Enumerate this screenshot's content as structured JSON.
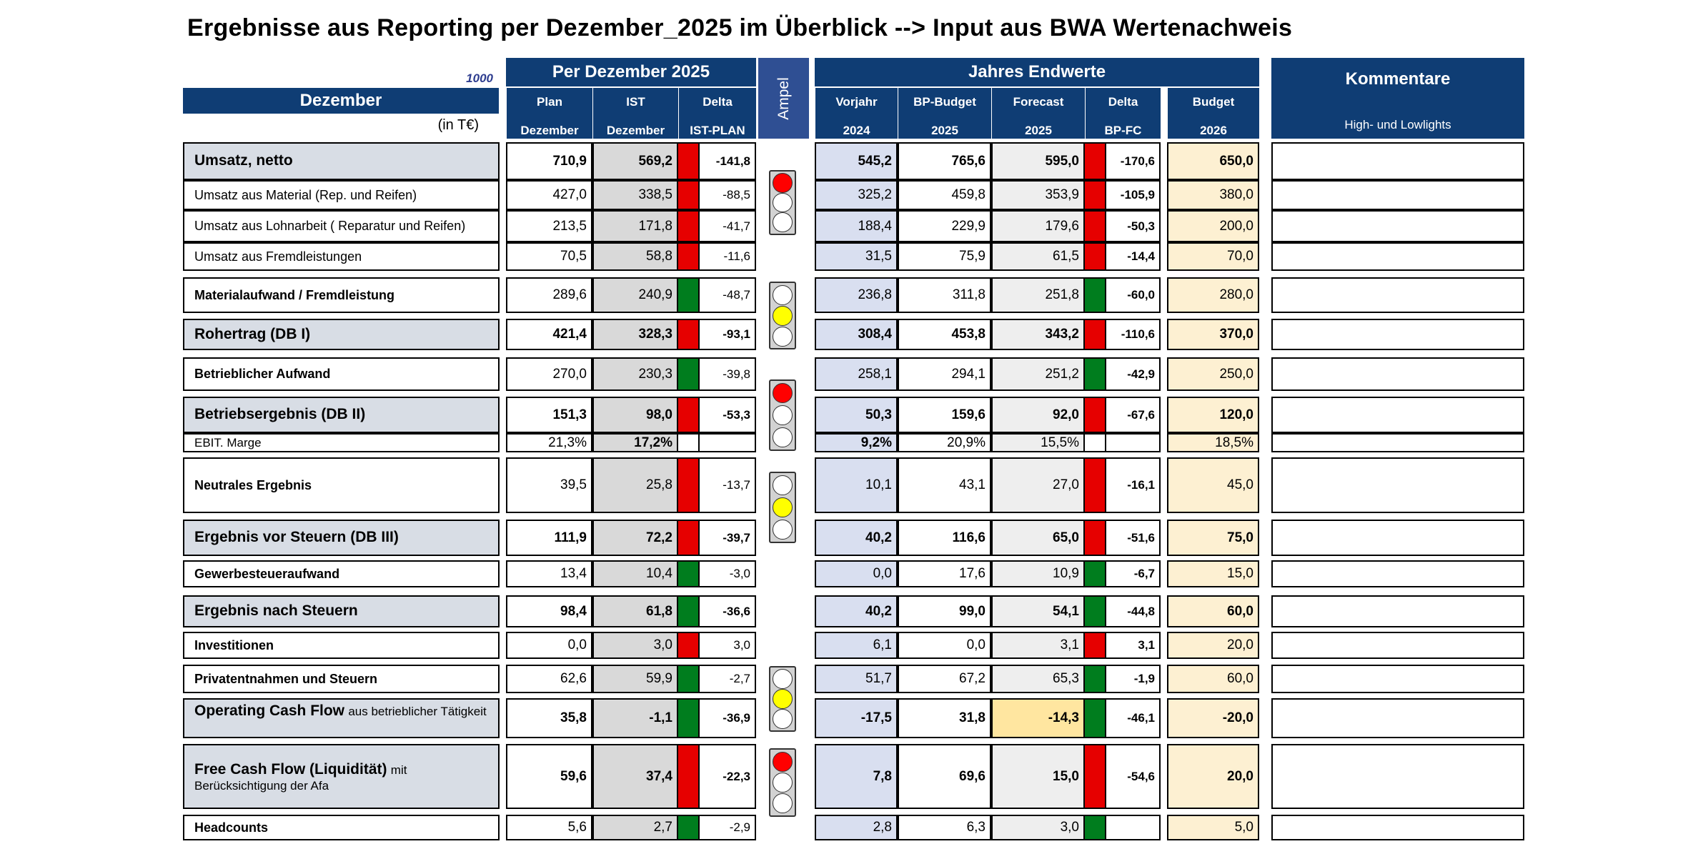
{
  "title": "Ergebnisse aus Reporting per Dezember_2025 im Überblick --> Input aus BWA Wertenachweis",
  "scale": "1000",
  "month_label": "Dezember",
  "unit": "(in T€)",
  "groups": {
    "period": "Per Dezember 2025",
    "ampel": "Ampel",
    "year": "Jahres Endwerte",
    "comments": "Kommentare"
  },
  "comments_sub": "High- und Lowlights",
  "columns": [
    {
      "l1": "Plan",
      "l2": "Dezember"
    },
    {
      "l1": "IST",
      "l2": "Dezember"
    },
    {
      "l1": "Delta",
      "l2": "IST-PLAN"
    },
    {
      "l1": "Vorjahr",
      "l2": "2024"
    },
    {
      "l1": "BP-Budget",
      "l2": "2025"
    },
    {
      "l1": "Forecast",
      "l2": "2025"
    },
    {
      "l1": "Delta",
      "l2": "BP-FC"
    },
    {
      "l1": "Budget",
      "l2": "2026"
    }
  ],
  "rows": [
    {
      "label": "Umsatz, netto",
      "plan": "710,9",
      "ist": "569,2",
      "flag1": "red",
      "delta": "-141,8",
      "vorjahr": "545,2",
      "bp": "765,6",
      "fc": "595,0",
      "flag2": "red",
      "delta2": "-170,6",
      "budget": "650,0"
    },
    {
      "label": "Umsatz aus Material (Rep. und Reifen)",
      "plan": "427,0",
      "ist": "338,5",
      "flag1": "red",
      "delta": "-88,5",
      "vorjahr": "325,2",
      "bp": "459,8",
      "fc": "353,9",
      "flag2": "red",
      "delta2": "-105,9",
      "budget": "380,0"
    },
    {
      "label": "Umsatz aus Lohnarbeit ( Reparatur und Reifen)",
      "plan": "213,5",
      "ist": "171,8",
      "flag1": "red",
      "delta": "-41,7",
      "vorjahr": "188,4",
      "bp": "229,9",
      "fc": "179,6",
      "flag2": "red",
      "delta2": "-50,3",
      "budget": "200,0"
    },
    {
      "label": "Umsatz aus Fremdleistungen",
      "plan": "70,5",
      "ist": "58,8",
      "flag1": "red",
      "delta": "-11,6",
      "vorjahr": "31,5",
      "bp": "75,9",
      "fc": "61,5",
      "flag2": "red",
      "delta2": "-14,4",
      "budget": "70,0"
    },
    {
      "label": "Materialaufwand / Fremdleistung",
      "plan": "289,6",
      "ist": "240,9",
      "flag1": "green",
      "delta": "-48,7",
      "vorjahr": "236,8",
      "bp": "311,8",
      "fc": "251,8",
      "flag2": "green",
      "delta2": "-60,0",
      "budget": "280,0"
    },
    {
      "label": "Rohertrag (DB I)",
      "plan": "421,4",
      "ist": "328,3",
      "flag1": "red",
      "delta": "-93,1",
      "vorjahr": "308,4",
      "bp": "453,8",
      "fc": "343,2",
      "flag2": "red",
      "delta2": "-110,6",
      "budget": "370,0"
    },
    {
      "label": "Betrieblicher Aufwand",
      "plan": "270,0",
      "ist": "230,3",
      "flag1": "green",
      "delta": "-39,8",
      "vorjahr": "258,1",
      "bp": "294,1",
      "fc": "251,2",
      "flag2": "green",
      "delta2": "-42,9",
      "budget": "250,0"
    },
    {
      "label": "Betriebsergebnis (DB II)",
      "plan": "151,3",
      "ist": "98,0",
      "flag1": "red",
      "delta": "-53,3",
      "vorjahr": "50,3",
      "bp": "159,6",
      "fc": "92,0",
      "flag2": "red",
      "delta2": "-67,6",
      "budget": "120,0"
    },
    {
      "label": "EBIT. Marge",
      "plan": "21,3%",
      "ist": "17,2%",
      "flag1": "",
      "delta": "",
      "vorjahr": "9,2%",
      "bp": "20,9%",
      "fc": "15,5%",
      "flag2": "",
      "delta2": "",
      "budget": "18,5%"
    },
    {
      "label": "Neutrales Ergebnis",
      "plan": "39,5",
      "ist": "25,8",
      "flag1": "red",
      "delta": "-13,7",
      "vorjahr": "10,1",
      "bp": "43,1",
      "fc": "27,0",
      "flag2": "red",
      "delta2": "-16,1",
      "budget": "45,0"
    },
    {
      "label": "Ergebnis vor Steuern (DB III)",
      "plan": "111,9",
      "ist": "72,2",
      "flag1": "red",
      "delta": "-39,7",
      "vorjahr": "40,2",
      "bp": "116,6",
      "fc": "65,0",
      "flag2": "red",
      "delta2": "-51,6",
      "budget": "75,0"
    },
    {
      "label": "Gewerbesteueraufwand",
      "plan": "13,4",
      "ist": "10,4",
      "flag1": "green",
      "delta": "-3,0",
      "vorjahr": "0,0",
      "bp": "17,6",
      "fc": "10,9",
      "flag2": "green",
      "delta2": "-6,7",
      "budget": "15,0"
    },
    {
      "label": "Ergebnis nach Steuern",
      "plan": "98,4",
      "ist": "61,8",
      "flag1": "green",
      "delta": "-36,6",
      "vorjahr": "40,2",
      "bp": "99,0",
      "fc": "54,1",
      "flag2": "green",
      "delta2": "-44,8",
      "budget": "60,0"
    },
    {
      "label": "Investitionen",
      "plan": "0,0",
      "ist": "3,0",
      "flag1": "red",
      "delta": "3,0",
      "vorjahr": "6,1",
      "bp": "0,0",
      "fc": "3,1",
      "flag2": "red",
      "delta2": "3,1",
      "budget": "20,0"
    },
    {
      "label": "Privatentnahmen und Steuern",
      "plan": "62,6",
      "ist": "59,9",
      "flag1": "green",
      "delta": "-2,7",
      "vorjahr": "51,7",
      "bp": "67,2",
      "fc": "65,3",
      "flag2": "green",
      "delta2": "-1,9",
      "budget": "60,0"
    },
    {
      "label": "Operating Cash Flow",
      "label_suffix": "aus betrieblicher Tätigkeit",
      "plan": "35,8",
      "ist": "-1,1",
      "flag1": "green",
      "delta": "-36,9",
      "vorjahr": "-17,5",
      "bp": "31,8",
      "fc": "-14,3",
      "flag2": "green",
      "delta2": "-46,1",
      "budget": "-20,0"
    },
    {
      "label": "Free Cash Flow (Liquidität)",
      "label_suffix": "mit Berücksichtigung der Afa",
      "plan": "59,6",
      "ist": "37,4",
      "flag1": "red",
      "delta": "-22,3",
      "vorjahr": "7,8",
      "bp": "69,6",
      "fc": "15,0",
      "flag2": "red",
      "delta2": "-54,6",
      "budget": "20,0"
    },
    {
      "label": "Headcounts",
      "plan": "5,6",
      "ist": "2,7",
      "flag1": "green",
      "delta": "-2,9",
      "vorjahr": "2,8",
      "bp": "6,3",
      "fc": "3,0",
      "flag2": "green",
      "delta2": "",
      "budget": "5,0"
    }
  ],
  "ampel_lights": [
    {
      "lamps": [
        "red",
        "off",
        "off"
      ]
    },
    {
      "lamps": [
        "off",
        "yellow",
        "off"
      ]
    },
    {
      "lamps": [
        "red",
        "off",
        "off"
      ]
    },
    {
      "lamps": [
        "off",
        "yellow",
        "off"
      ]
    },
    {
      "lamps": [
        "off",
        "yellow",
        "off"
      ]
    },
    {
      "lamps": [
        "red",
        "off",
        "off"
      ]
    }
  ],
  "colors": {
    "header": "#0f3d74",
    "ampel_header": "#2f4f93",
    "flag_red": "#e60000",
    "flag_green": "#007d1e",
    "label_shade": "#d8dde5",
    "budget_shade": "#fdf0d2"
  }
}
